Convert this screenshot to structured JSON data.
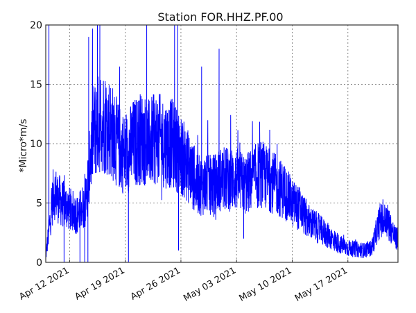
{
  "chart_data": {
    "type": "line",
    "title": "Station FOR.HHZ.PF.00",
    "xlabel": "",
    "ylabel": "*Micro*m/s",
    "ylim": [
      0,
      20
    ],
    "xlim_days_from_start": [
      0,
      14.35
    ],
    "x_start_date": "Apr 09 2021",
    "x_unit": "days since Apr 09 2021",
    "yticks": [
      0,
      5,
      10,
      15,
      20
    ],
    "ytick_labels": [
      "0",
      "5",
      "10",
      "15",
      "20"
    ],
    "xticks": [
      3,
      10,
      17,
      24,
      31,
      38
    ],
    "xtick_labels": [
      "Apr 12 2021",
      "Apr 19 2021",
      "Apr 26 2021",
      "May 03 2021",
      "May 10 2021",
      "May 17 2021"
    ],
    "grid": true,
    "color": "#0000ff",
    "series": [
      {
        "name": "HHZ",
        "level_days": [
          0,
          1,
          2,
          3,
          4,
          5,
          6,
          7,
          8,
          9,
          10,
          11,
          12,
          13,
          14,
          15,
          16,
          17,
          18,
          19,
          20,
          21,
          22,
          23,
          24,
          25,
          26,
          27,
          28,
          29,
          30,
          31,
          32,
          33,
          34,
          35,
          36,
          37,
          38,
          39,
          40,
          41,
          42,
          43,
          44
        ],
        "level_values": [
          0.5,
          6,
          5,
          4.5,
          4,
          5,
          11,
          12,
          11.5,
          10,
          9,
          10,
          10.5,
          10,
          10.5,
          10,
          10,
          9,
          8,
          6.5,
          6.5,
          6.5,
          7,
          7,
          7,
          6.5,
          7,
          7.5,
          7,
          6.5,
          6,
          5,
          4.5,
          3.5,
          3,
          2.5,
          2,
          1.5,
          1.2,
          1.1,
          1.0,
          1.2,
          3.5,
          3.5,
          2
        ],
        "spikes": [
          [
            0.4,
            20
          ],
          [
            5.4,
            19
          ],
          [
            6.5,
            20
          ],
          [
            6.8,
            20
          ],
          [
            9.3,
            16.5
          ],
          [
            12.7,
            20
          ],
          [
            16.2,
            20
          ],
          [
            16.6,
            20
          ],
          [
            19.6,
            16.5
          ],
          [
            21.8,
            18
          ],
          [
            29.1,
            10
          ],
          [
            2.3,
            0
          ],
          [
            4.3,
            0
          ],
          [
            4.9,
            0
          ],
          [
            5.3,
            0
          ],
          [
            10.4,
            0
          ],
          [
            16.7,
            1
          ],
          [
            24.9,
            2
          ]
        ]
      }
    ]
  }
}
